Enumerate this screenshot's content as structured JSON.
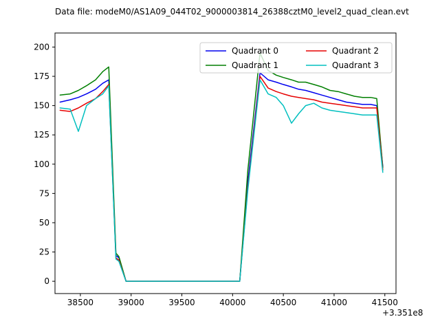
{
  "title": "Data file: modeM0/AS1A09_044T02_9000003814_26388cztM0_level2_quad_clean.evt",
  "chart_data": {
    "type": "line",
    "title": "Data file: modeM0/AS1A09_044T02_9000003814_26388cztM0_level2_quad_clean.evt",
    "xlabel": "",
    "ylabel": "",
    "x_offset_label": "+3.351e8",
    "xlim": [
      38250,
      41610
    ],
    "ylim": [
      -10.5,
      212
    ],
    "xticks": [
      38500,
      39000,
      39500,
      40000,
      40500,
      41000,
      41500
    ],
    "yticks": [
      0,
      25,
      50,
      75,
      100,
      125,
      150,
      175,
      200
    ],
    "grid": false,
    "legend_position": "upper right",
    "legend_columns": 2,
    "x": [
      38300,
      38400,
      38480,
      38560,
      38650,
      38720,
      38780,
      38850,
      38880,
      38950,
      40070,
      40150,
      40270,
      40350,
      40430,
      40500,
      40580,
      40650,
      40720,
      40800,
      40880,
      40960,
      41040,
      41120,
      41200,
      41280,
      41360,
      41420,
      41480
    ],
    "series": [
      {
        "name": "Quadrant 0",
        "color": "#0000ee",
        "values": [
          153,
          155,
          157,
          160,
          164,
          169,
          172,
          22,
          20,
          0,
          0,
          85,
          178,
          172,
          170,
          168,
          166,
          164,
          163,
          161,
          159,
          157,
          155,
          153,
          152,
          151,
          151,
          150,
          98
        ]
      },
      {
        "name": "Quadrant 1",
        "color": "#007f00",
        "values": [
          159,
          160,
          163,
          167,
          172,
          179,
          183,
          24,
          21,
          0,
          0,
          95,
          195,
          180,
          176,
          174,
          172,
          170,
          170,
          168,
          166,
          163,
          162,
          160,
          158,
          157,
          157,
          156,
          97
        ]
      },
      {
        "name": "Quadrant 2",
        "color": "#e60000",
        "values": [
          146,
          145,
          148,
          152,
          156,
          162,
          168,
          20,
          18,
          0,
          0,
          80,
          175,
          165,
          162,
          160,
          158,
          157,
          156,
          155,
          153,
          152,
          151,
          150,
          149,
          148,
          148,
          148,
          95
        ]
      },
      {
        "name": "Quadrant 3",
        "color": "#00bfbf",
        "values": [
          148,
          147,
          128,
          150,
          156,
          160,
          167,
          19,
          17,
          0,
          0,
          78,
          172,
          160,
          157,
          150,
          135,
          143,
          150,
          152,
          148,
          146,
          145,
          144,
          143,
          142,
          142,
          142,
          93
        ]
      }
    ]
  }
}
